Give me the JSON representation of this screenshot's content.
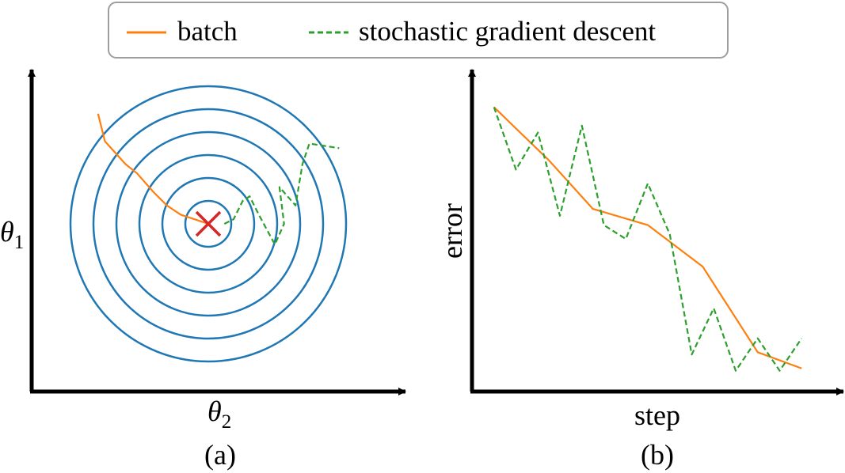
{
  "legend": {
    "placement": "top-center",
    "entries": [
      {
        "label": "batch",
        "color": "#ff7f0e",
        "style": "solid"
      },
      {
        "label": "stochastic gradient descent",
        "color": "#2ca02c",
        "style": "dashed"
      }
    ]
  },
  "chart_data": [
    {
      "type": "line",
      "caption": "(a)",
      "xlabel_symbol": "θ",
      "xlabel_sub": "2",
      "ylabel_symbol": "θ",
      "ylabel_sub": "1",
      "grid": false,
      "ticks": false,
      "contours": {
        "color": "#1f77b4",
        "center": [
          0,
          0
        ],
        "radii": [
          1,
          2,
          3,
          4,
          5,
          6
        ]
      },
      "minimum_marker": {
        "shape": "x",
        "color": "#d62728",
        "x": 0,
        "y": 0
      },
      "series": [
        {
          "name": "batch",
          "color": "#ff7f0e",
          "style": "solid",
          "x": [
            -4.8,
            -4.5,
            -3.6,
            -3.1,
            -2.4,
            -1.8,
            -1.2,
            0
          ],
          "y": [
            4.8,
            3.6,
            2.6,
            2.2,
            1.4,
            0.8,
            0.4,
            0
          ]
        },
        {
          "name": "stochastic gradient descent",
          "color": "#2ca02c",
          "style": "dashed",
          "x": [
            0.7,
            1.1,
            1.5,
            1.8,
            2.2,
            2.9,
            3.3,
            3.2,
            3.1,
            3.8,
            4.1,
            4.4,
            5.7
          ],
          "y": [
            0.0,
            0.2,
            1.0,
            1.2,
            0.4,
            -0.9,
            0.0,
            0.8,
            1.6,
            0.8,
            2.6,
            3.5,
            3.3
          ]
        }
      ]
    },
    {
      "type": "line",
      "caption": "(b)",
      "xlabel": "step",
      "ylabel": "error",
      "grid": false,
      "ticks": false,
      "xlim": [
        0,
        16
      ],
      "ylim": [
        0,
        13
      ],
      "series": [
        {
          "name": "batch",
          "color": "#ff7f0e",
          "style": "solid",
          "x": [
            1,
            3.5,
            5.5,
            8,
            10.5,
            13,
            15
          ],
          "y": [
            12.3,
            10.0,
            7.9,
            7.2,
            5.4,
            1.7,
            1.0
          ]
        },
        {
          "name": "stochastic gradient descent",
          "color": "#2ca02c",
          "style": "dashed",
          "x": [
            1,
            2,
            3,
            4,
            5,
            6,
            7,
            8,
            9,
            10,
            11,
            12,
            13,
            14,
            15
          ],
          "y": [
            12.3,
            9.6,
            11.2,
            7.6,
            11.5,
            7.2,
            6.6,
            9.0,
            6.8,
            1.6,
            3.6,
            0.9,
            2.3,
            0.9,
            2.3
          ]
        }
      ]
    }
  ]
}
